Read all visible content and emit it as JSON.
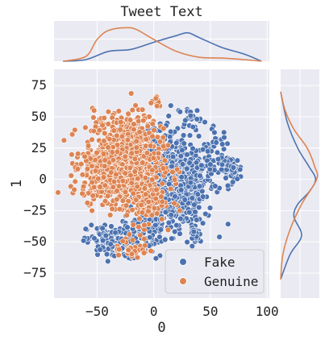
{
  "chart_data": {
    "type": "scatter",
    "title": "Tweet Text",
    "xlabel": "0",
    "ylabel": "1",
    "xlim": [
      -88,
      102
    ],
    "ylim": [
      -95,
      88
    ],
    "xticks": [
      -50,
      0,
      50,
      100
    ],
    "yticks": [
      75,
      50,
      25,
      0,
      -25,
      -50,
      -75
    ],
    "xtick_labels": [
      "−50",
      "0",
      "50",
      "100"
    ],
    "ytick_labels": [
      "75",
      "50",
      "25",
      "0",
      "−25",
      "−50",
      "−75"
    ],
    "grid": true,
    "legend_position": "lower-right",
    "marginal_plots": "kde",
    "series": [
      {
        "name": "Fake",
        "color": "#4c72b0",
        "clusters": [
          {
            "cx": 22,
            "cy": 0,
            "sx": 16,
            "sy": 18,
            "n": 520
          },
          {
            "cx": 10,
            "cy": -15,
            "sx": 14,
            "sy": 12,
            "n": 220
          },
          {
            "cx": -35,
            "cy": -50,
            "sx": 12,
            "sy": 7,
            "n": 170
          },
          {
            "cx": -5,
            "cy": -42,
            "sx": 7,
            "sy": 6,
            "n": 70
          },
          {
            "cx": 68,
            "cy": 8,
            "sx": 5,
            "sy": 5,
            "n": 70
          },
          {
            "cx": 38,
            "cy": -45,
            "sx": 3,
            "sy": 3,
            "n": 25
          },
          {
            "cx": 32,
            "cy": 50,
            "sx": 5,
            "sy": 4,
            "n": 20
          },
          {
            "cx": 55,
            "cy": 25,
            "sx": 6,
            "sy": 8,
            "n": 30
          },
          {
            "cx": -8,
            "cy": 27,
            "sx": 12,
            "sy": 12,
            "n": 60
          }
        ],
        "kde_x": {
          "x": [
            -80,
            -60,
            -40,
            -20,
            0,
            20,
            30,
            40,
            60,
            80,
            95
          ],
          "density": [
            0.0,
            0.04,
            0.25,
            0.3,
            0.48,
            0.65,
            0.72,
            0.6,
            0.35,
            0.18,
            0.0
          ]
        },
        "kde_y": {
          "y": [
            -80,
            -60,
            -45,
            -30,
            -20,
            -10,
            0,
            10,
            25,
            45,
            70
          ],
          "density": [
            0.0,
            0.25,
            0.55,
            0.35,
            0.45,
            0.75,
            0.92,
            0.75,
            0.45,
            0.18,
            0.0
          ]
        }
      },
      {
        "name": "Genuine",
        "color": "#dd8452",
        "clusters": [
          {
            "cx": -28,
            "cy": 12,
            "sx": 17,
            "sy": 15,
            "n": 720
          },
          {
            "cx": -45,
            "cy": 5,
            "sx": 9,
            "sy": 10,
            "n": 200
          },
          {
            "cx": -10,
            "cy": -15,
            "sx": 10,
            "sy": 10,
            "n": 150
          },
          {
            "cx": -25,
            "cy": 40,
            "sx": 14,
            "sy": 8,
            "n": 110
          },
          {
            "cx": -20,
            "cy": -55,
            "sx": 8,
            "sy": 5,
            "n": 35
          },
          {
            "cx": 2,
            "cy": 62,
            "sx": 2,
            "sy": 2,
            "n": 10
          }
        ],
        "kde_x": {
          "x": [
            -80,
            -60,
            -50,
            -40,
            -25,
            -15,
            0,
            20,
            40,
            60,
            80,
            95
          ],
          "density": [
            0.0,
            0.12,
            0.55,
            0.78,
            0.85,
            0.8,
            0.55,
            0.25,
            0.1,
            0.08,
            0.04,
            0.0
          ]
        },
        "kde_y": {
          "y": [
            -80,
            -60,
            -40,
            -20,
            0,
            10,
            25,
            40,
            55,
            70
          ],
          "density": [
            0.0,
            0.06,
            0.25,
            0.55,
            0.95,
            0.9,
            0.7,
            0.35,
            0.12,
            0.0
          ]
        }
      }
    ]
  }
}
